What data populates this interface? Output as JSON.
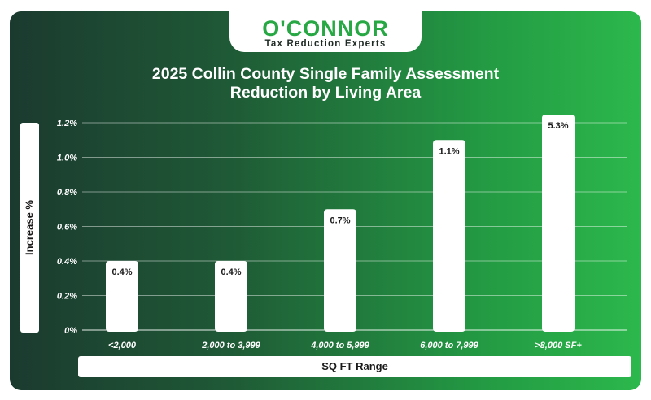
{
  "brand": {
    "name": "O'CONNOR",
    "tagline": "Tax Reduction Experts",
    "colors": {
      "green": "#27a844",
      "bg_dark": "#1b3a2f",
      "bg_light": "#2cb84c"
    }
  },
  "chart_data": {
    "type": "bar",
    "title": "2025 Collin County Single Family Assessment Reduction by Living Area",
    "title_lines": [
      "2025 Collin County Single Family Assessment",
      "Reduction by Living Area"
    ],
    "xlabel": "SQ FT Range",
    "ylabel": "Increase %",
    "categories": [
      "<2,000",
      "2,000 to 3,999",
      "4,000 to 5,999",
      "6,000 to 7,999",
      ">8,000 SF+"
    ],
    "values": [
      0.4,
      0.4,
      0.7,
      1.1,
      5.3
    ],
    "data_labels": [
      "0.4%",
      "0.4%",
      "0.7%",
      "1.1%",
      "5.3%"
    ],
    "y_ticks": [
      0,
      0.2,
      0.4,
      0.6,
      0.8,
      1.0,
      1.2
    ],
    "y_tick_labels": [
      "0%",
      "0.2%",
      "0.4%",
      "0.6%",
      "0.8%",
      "1.0%",
      "1.2%"
    ],
    "ylim": [
      0,
      1.2
    ],
    "axis_break": "5.3% bar exceeds axis range and is clipped at top",
    "grid": true,
    "bar_color": "#ffffff",
    "grid_color": "#ffffff"
  }
}
